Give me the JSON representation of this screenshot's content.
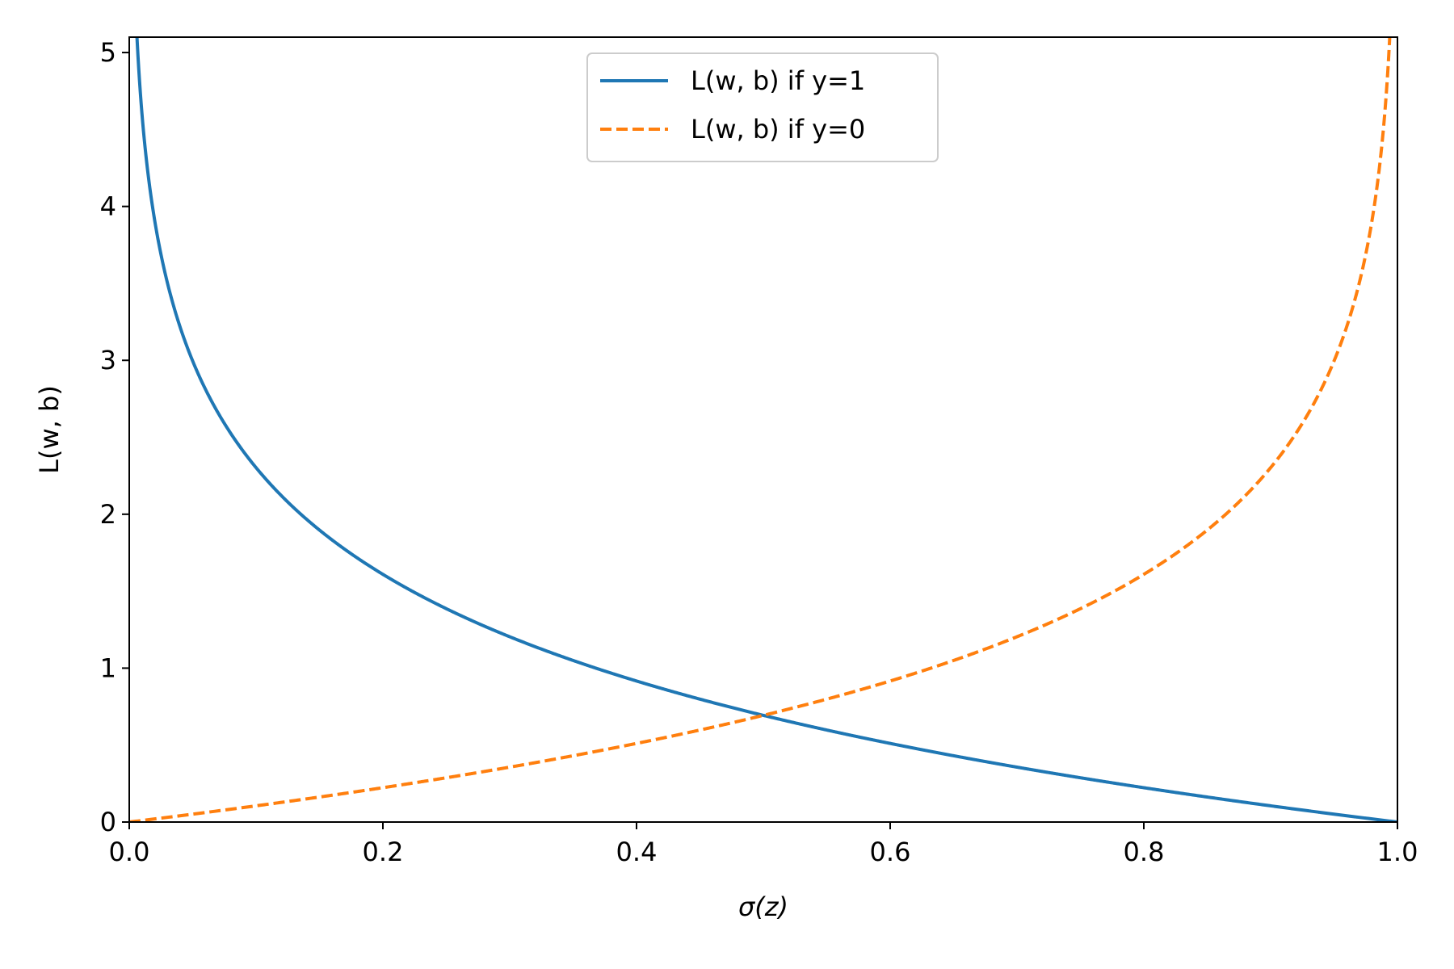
{
  "chart_data": {
    "type": "line",
    "title": "",
    "xlabel": "σ(z)",
    "ylabel": "L(w, b)",
    "xlim": [
      0.0,
      1.0
    ],
    "ylim": [
      0,
      5.1
    ],
    "x_ticks": [
      "0.0",
      "0.2",
      "0.4",
      "0.6",
      "0.8",
      "1.0"
    ],
    "y_ticks": [
      "0",
      "1",
      "2",
      "3",
      "4",
      "5"
    ],
    "grid": false,
    "legend_position": "upper center",
    "series": [
      {
        "name": "L(w, b) if y=1",
        "function": "-log(x)",
        "color": "#1f77b4",
        "style": "solid",
        "x": [
          0.005,
          0.01,
          0.02,
          0.03,
          0.05,
          0.075,
          0.1,
          0.15,
          0.2,
          0.3,
          0.4,
          0.5,
          0.6,
          0.7,
          0.8,
          0.9,
          1.0
        ],
        "y": [
          5.3,
          4.61,
          3.91,
          3.51,
          3.0,
          2.59,
          2.3,
          1.9,
          1.61,
          1.2,
          0.92,
          0.69,
          0.51,
          0.36,
          0.22,
          0.11,
          0.0
        ]
      },
      {
        "name": "L(w, b) if y=0",
        "function": "-log(1-x)",
        "color": "#ff7f0e",
        "style": "dashed",
        "x": [
          0.0,
          0.1,
          0.2,
          0.3,
          0.4,
          0.5,
          0.6,
          0.7,
          0.8,
          0.85,
          0.9,
          0.925,
          0.95,
          0.97,
          0.98,
          0.99,
          0.995
        ],
        "y": [
          0.0,
          0.11,
          0.22,
          0.36,
          0.51,
          0.69,
          0.92,
          1.2,
          1.61,
          1.9,
          2.3,
          2.59,
          3.0,
          3.51,
          3.91,
          4.61,
          5.3
        ]
      }
    ]
  }
}
